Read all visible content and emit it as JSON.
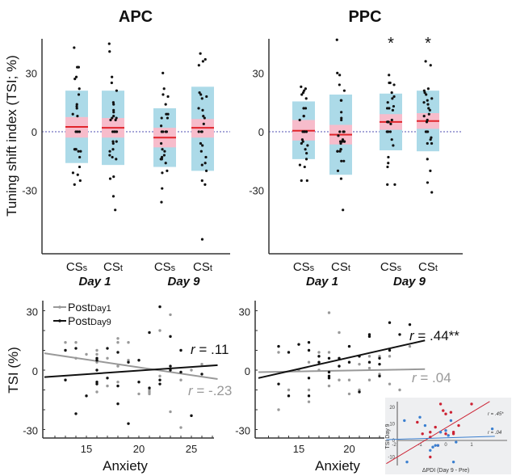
{
  "chart_data": [
    {
      "type": "box",
      "title": "APC",
      "ylabel": "Tuning shift index (TSI; %)",
      "yticks": [
        30,
        0,
        -30
      ],
      "ylim": [
        -55,
        47
      ],
      "groups": [
        {
          "category": "CSs",
          "sub": "s",
          "day": "Day 1",
          "mean": 2.5,
          "ci": [
            -3,
            7.5
          ],
          "sd": [
            -16,
            21
          ],
          "significant": false,
          "points": [
            43,
            33,
            33,
            28,
            27,
            22,
            19,
            13,
            14,
            12,
            9,
            8,
            0,
            0,
            0,
            -9,
            -9,
            -9,
            -10,
            -10,
            -13,
            -18,
            -21,
            -22,
            -25,
            -27
          ]
        },
        {
          "category": "CSt",
          "sub": "t",
          "day": "Day 1",
          "mean": 2,
          "ci": [
            -3,
            7
          ],
          "sd": [
            -17,
            21
          ],
          "significant": false,
          "points": [
            45,
            41,
            28,
            25,
            21,
            15,
            14,
            11,
            10,
            8,
            7,
            7,
            6,
            6,
            0,
            0,
            0,
            0,
            -5,
            -5,
            -6,
            -9,
            -10,
            -12,
            -13,
            -14,
            -23,
            -24,
            -33,
            -40
          ]
        },
        {
          "category": "CSs",
          "sub": "s",
          "day": "Day 9",
          "mean": -3,
          "ci": [
            -8,
            2
          ],
          "sd": [
            -18,
            12
          ],
          "significant": false,
          "points": [
            30,
            22,
            19,
            18,
            14,
            9,
            9,
            7,
            7,
            3,
            0,
            0,
            0,
            0,
            -6,
            -9,
            -10,
            -12,
            -13,
            -14,
            -14,
            -16,
            -20,
            -21,
            -29,
            -36
          ]
        },
        {
          "category": "CSt",
          "sub": "t",
          "day": "Day 9",
          "mean": 2,
          "ci": [
            -3,
            6.5
          ],
          "sd": [
            -20,
            23
          ],
          "significant": false,
          "points": [
            40,
            37,
            36,
            34,
            20,
            19,
            18,
            17,
            12,
            11,
            8,
            7,
            4,
            0,
            0,
            0,
            -6,
            -7,
            -10,
            -13,
            -16,
            -17,
            -20,
            -25,
            -27,
            -55
          ]
        }
      ]
    },
    {
      "type": "box",
      "title": "PPC",
      "ylabel": "",
      "yticks": [
        30,
        0,
        -30
      ],
      "ylim": [
        -55,
        47
      ],
      "groups": [
        {
          "category": "CSs",
          "sub": "s",
          "day": "Day 1",
          "mean": 0.5,
          "ci": [
            -4.5,
            6
          ],
          "sd": [
            -14,
            15.5
          ],
          "significant": false,
          "points": [
            23,
            22,
            21,
            20,
            19,
            17,
            12,
            12,
            8,
            8,
            6,
            0,
            0,
            0,
            0,
            -4,
            -5,
            -6,
            -7,
            -9,
            -11,
            -14,
            -17,
            -18,
            -25,
            -25
          ]
        },
        {
          "category": "CSt",
          "sub": "t",
          "day": "Day 1",
          "mean": -1.5,
          "ci": [
            -6.5,
            3.5
          ],
          "sd": [
            -22,
            19
          ],
          "significant": false,
          "points": [
            47,
            30,
            29,
            24,
            21,
            16,
            16,
            10,
            7,
            6,
            0,
            0,
            0,
            -2,
            -4,
            -5,
            -5,
            -5,
            -5,
            -6,
            -9,
            -9,
            -10,
            -10,
            -10,
            -15,
            -15,
            -20,
            -24,
            -40
          ]
        },
        {
          "category": "CSs",
          "sub": "s",
          "day": "Day 9",
          "mean": 5,
          "ci": [
            1,
            9
          ],
          "sd": [
            -9.5,
            19.5
          ],
          "significant": true,
          "points": [
            29,
            25,
            25,
            24,
            20,
            18,
            17,
            15,
            13,
            12,
            12,
            11,
            6,
            5,
            5,
            5,
            4,
            0,
            0,
            0,
            0,
            -4,
            -7,
            -13,
            -16,
            -18,
            -27,
            -27
          ]
        },
        {
          "category": "CSt",
          "sub": "t",
          "day": "Day 9",
          "mean": 5.5,
          "ci": [
            1.5,
            9.5
          ],
          "sd": [
            -10,
            21
          ],
          "significant": true,
          "points": [
            36,
            34,
            22,
            21,
            20,
            19,
            17,
            16,
            15,
            14,
            12,
            11,
            9,
            8,
            6,
            5,
            0,
            0,
            0,
            -3,
            -4,
            -6,
            -6,
            -14,
            -20,
            -26,
            -31
          ]
        }
      ]
    },
    {
      "type": "scatter",
      "title": "",
      "xlabel": "Anxiety",
      "ylabel": "TSI (%)",
      "xticks": [
        15,
        20,
        25
      ],
      "yticks": [
        30,
        0,
        -30
      ],
      "xlim": [
        11,
        27.5
      ],
      "ylim": [
        -34,
        34
      ],
      "legend": {
        "position": "top-left",
        "entries": [
          {
            "name": "Post",
            "sub": "Day1",
            "color": "#999999"
          },
          {
            "name": "Post",
            "sub": "Day9",
            "color": "#111111"
          }
        ]
      },
      "series": [
        {
          "name": "PostDay1",
          "color": "#999999",
          "r_label": "r = -.23",
          "fit": {
            "x": [
              11,
              27.5
            ],
            "y": [
              8.5,
              -4.5
            ]
          },
          "points": [
            [
              13,
              14
            ],
            [
              14,
              14
            ],
            [
              14,
              6
            ],
            [
              15,
              8
            ],
            [
              16,
              10
            ],
            [
              16,
              8
            ],
            [
              16,
              4
            ],
            [
              16,
              -11
            ],
            [
              17,
              6
            ],
            [
              17,
              -8
            ],
            [
              18,
              16
            ],
            [
              18,
              14
            ],
            [
              18,
              2
            ],
            [
              18,
              -6
            ],
            [
              19,
              14
            ],
            [
              19,
              5
            ],
            [
              20,
              -12
            ],
            [
              21,
              -11
            ],
            [
              21,
              -12
            ],
            [
              21,
              -10
            ],
            [
              22,
              20
            ],
            [
              22,
              -3
            ],
            [
              23,
              28
            ],
            [
              23,
              -21
            ],
            [
              24,
              -5
            ],
            [
              24,
              -29
            ],
            [
              25,
              0
            ],
            [
              26,
              3
            ]
          ]
        },
        {
          "name": "PostDay9",
          "color": "#111111",
          "r_label": "r = .11",
          "fit": {
            "x": [
              11,
              27.5
            ],
            "y": [
              -3.5,
              2.5
            ]
          },
          "points": [
            [
              13,
              10
            ],
            [
              13,
              -5
            ],
            [
              14,
              11
            ],
            [
              14,
              -22
            ],
            [
              15,
              -13
            ],
            [
              16,
              6
            ],
            [
              16,
              5
            ],
            [
              16,
              0
            ],
            [
              16,
              -6
            ],
            [
              16,
              -7
            ],
            [
              17,
              11
            ],
            [
              17,
              -4
            ],
            [
              18,
              9
            ],
            [
              18,
              -8
            ],
            [
              18,
              -17
            ],
            [
              19,
              4
            ],
            [
              19,
              -27
            ],
            [
              20,
              5
            ],
            [
              20,
              -6
            ],
            [
              21,
              19
            ],
            [
              21,
              -9
            ],
            [
              22,
              32
            ],
            [
              22,
              -5
            ],
            [
              22,
              -7
            ],
            [
              23,
              17
            ],
            [
              23,
              2
            ],
            [
              23,
              0
            ],
            [
              24,
              10
            ],
            [
              24,
              -1
            ],
            [
              25,
              -23
            ],
            [
              26,
              -2
            ]
          ]
        }
      ]
    },
    {
      "type": "scatter",
      "title": "",
      "xlabel": "Anxiety",
      "ylabel": "",
      "xticks": [
        15,
        20
      ],
      "yticks": [
        30,
        0,
        -30
      ],
      "xlim": [
        11,
        27.5
      ],
      "ylim": [
        -34,
        34
      ],
      "series": [
        {
          "name": "PostDay1",
          "color": "#999999",
          "r_label": "r = .04",
          "fit": {
            "x": [
              11,
              27.5
            ],
            "y": [
              -1,
              0.5
            ]
          },
          "points": [
            [
              13,
              9
            ],
            [
              13,
              -20
            ],
            [
              14,
              -10
            ],
            [
              15,
              0
            ],
            [
              16,
              4
            ],
            [
              16,
              -10
            ],
            [
              16,
              -16
            ],
            [
              17,
              9
            ],
            [
              17,
              0
            ],
            [
              18,
              29
            ],
            [
              18,
              9
            ],
            [
              18,
              -8
            ],
            [
              19,
              19
            ],
            [
              19,
              -5
            ],
            [
              20,
              -5
            ],
            [
              20,
              -12
            ],
            [
              21,
              3
            ],
            [
              21,
              -10
            ],
            [
              22,
              7
            ],
            [
              22,
              1
            ],
            [
              22,
              -5
            ],
            [
              23,
              7
            ],
            [
              23,
              -2
            ],
            [
              24,
              7
            ],
            [
              24,
              -7
            ],
            [
              25,
              -10
            ],
            [
              26,
              12
            ]
          ]
        },
        {
          "name": "PostDay9",
          "color": "#111111",
          "r_label": "r = .44**",
          "fit": {
            "x": [
              11,
              27.5
            ],
            "y": [
              -4,
              15
            ]
          },
          "points": [
            [
              13,
              12
            ],
            [
              13,
              -7
            ],
            [
              14,
              9
            ],
            [
              14,
              -13
            ],
            [
              15,
              13
            ],
            [
              16,
              14
            ],
            [
              16,
              10
            ],
            [
              16,
              -4
            ],
            [
              16,
              -13
            ],
            [
              17,
              7
            ],
            [
              17,
              4
            ],
            [
              18,
              6
            ],
            [
              18,
              -1
            ],
            [
              18,
              -3
            ],
            [
              18,
              -4
            ],
            [
              19,
              6
            ],
            [
              19,
              2
            ],
            [
              20,
              12
            ],
            [
              20,
              4
            ],
            [
              21,
              7
            ],
            [
              21,
              -11
            ],
            [
              22,
              18
            ],
            [
              22,
              17
            ],
            [
              22,
              4
            ],
            [
              23,
              6
            ],
            [
              23,
              3
            ],
            [
              23,
              -3
            ],
            [
              24,
              10
            ],
            [
              24,
              24
            ],
            [
              25,
              18
            ],
            [
              26,
              23
            ]
          ]
        }
      ]
    },
    {
      "type": "scatter",
      "title": "",
      "xlabel": "ΔPDI (Day 9 - Pre)",
      "ylabel": "TSI Day 9",
      "xticks": [
        -2,
        -1,
        0,
        1
      ],
      "yticks": [
        20,
        10,
        0,
        -10
      ],
      "xlim": [
        -2.3,
        1.9
      ],
      "ylim": [
        -15,
        26
      ],
      "series": [
        {
          "name": "red",
          "color": "#cc2233",
          "r_label": "r = .45*",
          "fit": {
            "x": [
              -2.3,
              1.7
            ],
            "y": [
              -14,
              23.5
            ]
          },
          "points": [
            [
              -1.1,
              11
            ],
            [
              -0.9,
              4
            ],
            [
              -0.6,
              5
            ],
            [
              -0.6,
              2
            ],
            [
              -0.6,
              -10
            ],
            [
              -0.4,
              8
            ],
            [
              -0.3,
              -3
            ],
            [
              -0.2,
              22
            ],
            [
              -0.1,
              18
            ],
            [
              0,
              16
            ],
            [
              0,
              4
            ],
            [
              0.2,
              17
            ],
            [
              0.3,
              4
            ],
            [
              0.3,
              5
            ],
            [
              0.5,
              9
            ],
            [
              1.0,
              22
            ]
          ]
        },
        {
          "name": "blue",
          "color": "#3a7fd0",
          "r_label": "r = .04",
          "fit": {
            "x": [
              -2.3,
              1.9
            ],
            "y": [
              0.5,
              2.5
            ]
          },
          "points": [
            [
              -1.6,
              12
            ],
            [
              -1.5,
              -13
            ],
            [
              -1.0,
              14
            ],
            [
              -0.8,
              9
            ],
            [
              -0.6,
              -6
            ],
            [
              -0.5,
              -4
            ],
            [
              -0.4,
              -3
            ],
            [
              -0.3,
              -3
            ],
            [
              -0.2,
              5
            ],
            [
              0.0,
              6
            ],
            [
              0.1,
              3
            ],
            [
              0.2,
              12
            ],
            [
              0.3,
              -13
            ],
            [
              0.4,
              -1
            ],
            [
              1.8,
              7
            ]
          ]
        }
      ]
    }
  ],
  "labels": {
    "apc_title": "APC",
    "ppc_title": "PPC",
    "top_ylabel": "Tuning shift index (TSI; %)",
    "bottom_ylabel": "TSI (%)",
    "cs_prefix": "CS",
    "day1": "Day 1",
    "day9": "Day 9",
    "anxiety": "Anxiety",
    "star": "*",
    "stray_tick": "-30",
    "inset_ylabel": "TSI Day 9",
    "inset_xlabel": "ΔPDI (Day 9 - Pre)"
  }
}
